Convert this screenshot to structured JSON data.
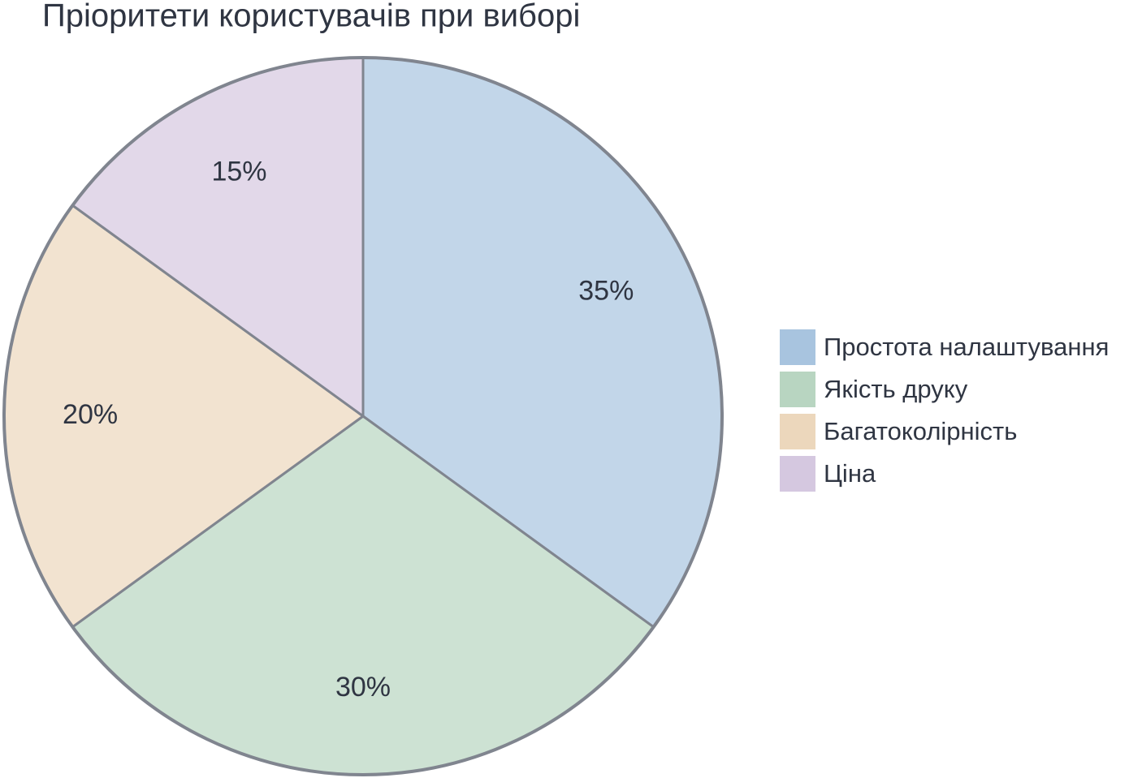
{
  "chart_data": {
    "type": "pie",
    "title": "Пріоритети користувачів при виборі",
    "categories": [
      "Простота налаштування",
      "Якість друку",
      "Багатоколірність",
      "Ціна"
    ],
    "values": [
      35,
      30,
      20,
      15
    ],
    "value_labels": [
      "35%",
      "30%",
      "20%",
      "15%"
    ],
    "colors": [
      "#a8c4df",
      "#b8d5c1",
      "#ecd7bc",
      "#d5c8e0"
    ],
    "legend": "right"
  }
}
